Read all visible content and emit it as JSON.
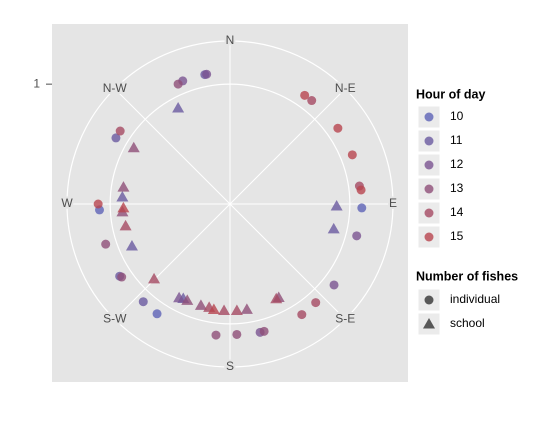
{
  "chart_data": {
    "type": "polar-scatter",
    "xlim": [
      0,
      360
    ],
    "xticks": [
      {
        "value": 0,
        "label": "N"
      },
      {
        "value": 45,
        "label": "N-E"
      },
      {
        "value": 90,
        "label": "E"
      },
      {
        "value": 135,
        "label": "S-E"
      },
      {
        "value": 180,
        "label": "S"
      },
      {
        "value": 225,
        "label": "S-W"
      },
      {
        "value": 270,
        "label": "W"
      },
      {
        "value": 315,
        "label": "N-W"
      }
    ],
    "ylim": [
      0,
      1.36
    ],
    "yticks": [
      1
    ],
    "grid": true,
    "color_legend_title": "Hour of day",
    "shape_legend_title": "Number of fishes",
    "shape_names": [
      "individual",
      "school"
    ],
    "series": [
      {
        "name": "10",
        "color": "#5e63b6",
        "x": [
          91.7,
          213.6,
          267.4
        ],
        "values": [
          1.1,
          1.1,
          1.09
        ],
        "shapes": [
          "individual",
          "individual",
          "individual"
        ]
      },
      {
        "name": "11",
        "color": "#6a5aa0",
        "x": [
          349,
          331.6,
          91.1,
          103.5,
          206.3,
          221.6,
          236.8,
          246.8,
          273.7,
          300.1
        ],
        "values": [
          1.1,
          0.91,
          0.89,
          0.89,
          0.88,
          1.09,
          1.1,
          0.89,
          0.9,
          1.1
        ],
        "shapes": [
          "individual",
          "school",
          "school",
          "school",
          "school",
          "individual",
          "individual",
          "school",
          "school",
          "individual"
        ]
      },
      {
        "name": "12",
        "color": "#7b5491",
        "x": [
          339,
          349.8,
          104.1,
          127.9,
          166.8,
          208.5
        ],
        "values": [
          1.1,
          1.1,
          1.09,
          1.1,
          1.1,
          0.89
        ],
        "shapes": [
          "individual",
          "individual",
          "individual",
          "individual",
          "individual",
          "school"
        ]
      },
      {
        "name": "13",
        "color": "#8f4f78",
        "x": [
          336.6,
          152.5,
          165,
          177,
          186.1,
          170.9,
          196,
          203.9,
          236,
          252.1,
          265.8,
          279,
          300.3
        ],
        "values": [
          1.09,
          0.88,
          1.1,
          1.09,
          1.1,
          0.89,
          0.88,
          0.88,
          1.09,
          1.09,
          0.9,
          0.9,
          0.93
        ],
        "shapes": [
          "individual",
          "school",
          "individual",
          "individual",
          "individual",
          "school",
          "school",
          "school",
          "individual",
          "individual",
          "school",
          "school",
          "school"
        ]
      },
      {
        "name": "14",
        "color": "#a54a63",
        "x": [
          38.3,
          82.1,
          139,
          147,
          154,
          176.3,
          183.2,
          191.4,
          225.4,
          258.2,
          303.6
        ],
        "values": [
          1.1,
          1.09,
          1.09,
          1.1,
          0.88,
          0.89,
          0.89,
          0.88,
          0.89,
          0.89,
          1.1
        ],
        "shapes": [
          "individual",
          "individual",
          "individual",
          "individual",
          "school",
          "school",
          "school",
          "school",
          "school",
          "school",
          "individual"
        ]
      },
      {
        "name": "15",
        "color": "#b8454f",
        "x": [
          34.5,
          54.9,
          68.1,
          83.9,
          188.7,
          267.9,
          270
        ],
        "values": [
          1.1,
          1.1,
          1.1,
          1.1,
          0.89,
          0.89,
          1.1
        ],
        "shapes": [
          "individual",
          "individual",
          "individual",
          "individual",
          "school",
          "school",
          "individual"
        ]
      }
    ]
  }
}
